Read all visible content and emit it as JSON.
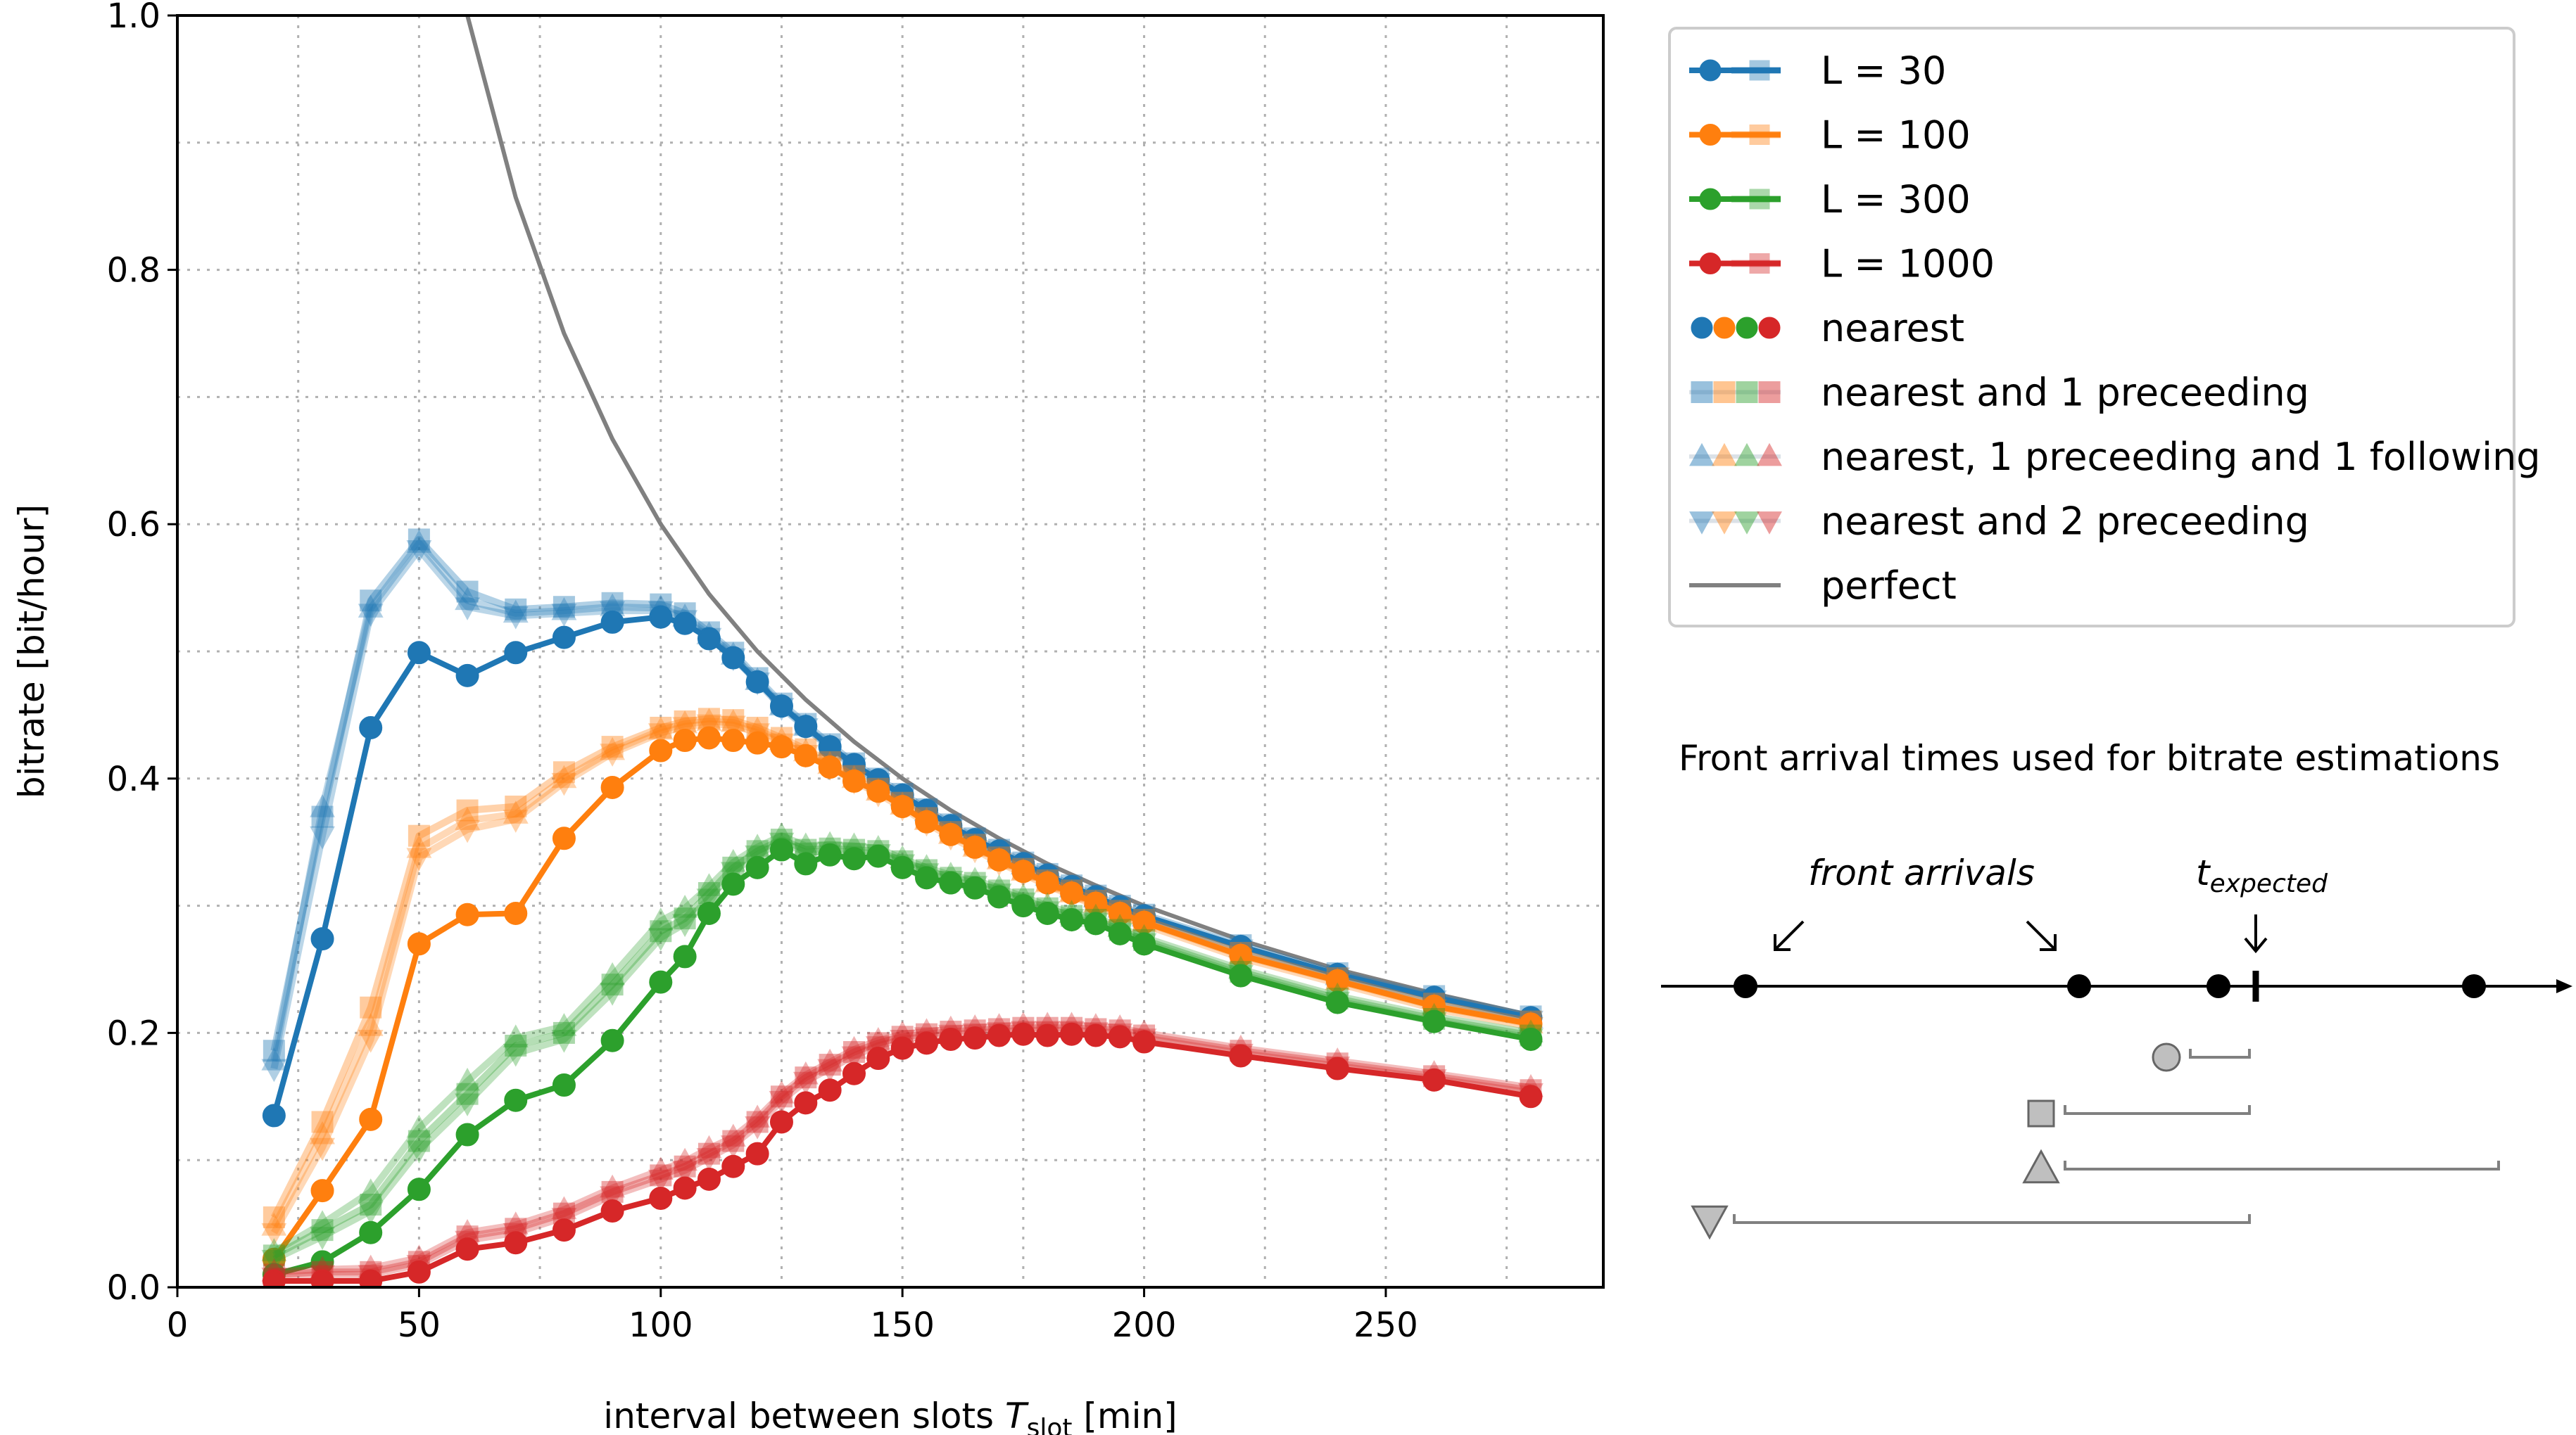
{
  "chart_data": {
    "type": "line",
    "xlabel": "interval between slots",
    "xlabel_symbol": "T",
    "xlabel_sub": "slot",
    "xlabel_unit": "[min]",
    "ylabel": "bitrate [bit/hour]",
    "xlim": [
      0,
      295
    ],
    "ylim": [
      0.0,
      1.0
    ],
    "xticks": [
      0,
      50,
      100,
      150,
      200,
      250
    ],
    "yticks": [
      0.0,
      0.2,
      0.4,
      0.6,
      0.8,
      1.0
    ],
    "xtick_labels": [
      "0",
      "50",
      "100",
      "150",
      "200",
      "250"
    ],
    "ytick_labels": [
      "0.0",
      "0.2",
      "0.4",
      "0.6",
      "0.8",
      "1.0"
    ],
    "grid": true,
    "legend_position": "outside-right-top",
    "x": [
      20,
      30,
      40,
      50,
      60,
      70,
      80,
      90,
      100,
      105,
      110,
      115,
      120,
      125,
      130,
      135,
      140,
      145,
      150,
      155,
      160,
      165,
      170,
      175,
      180,
      185,
      190,
      195,
      200,
      220,
      240,
      260,
      280
    ],
    "perfect": {
      "name": "perfect",
      "color": "#808080",
      "x": [
        60,
        70,
        80,
        90,
        100,
        110,
        120,
        130,
        140,
        150,
        160,
        170,
        180,
        190,
        200,
        220,
        240,
        260,
        280
      ],
      "values": [
        1.0,
        0.857,
        0.75,
        0.667,
        0.6,
        0.545,
        0.5,
        0.462,
        0.429,
        0.4,
        0.375,
        0.353,
        0.333,
        0.316,
        0.3,
        0.273,
        0.25,
        0.231,
        0.214
      ]
    },
    "series": [
      {
        "name": "L = 30",
        "color": "#1f77b4",
        "nearest": [
          0.135,
          0.274,
          0.44,
          0.499,
          0.481,
          0.499,
          0.511,
          0.523,
          0.527,
          0.522,
          0.51,
          0.495,
          0.476,
          0.457,
          0.441,
          0.425,
          0.411,
          0.399,
          0.387,
          0.375,
          0.363,
          0.352,
          0.343,
          0.333,
          0.324,
          0.315,
          0.307,
          0.299,
          0.292,
          0.268,
          0.246,
          0.228,
          0.212
        ],
        "nearest_1_preceding": [
          0.186,
          0.37,
          0.54,
          0.588,
          0.547,
          0.533,
          0.535,
          0.538,
          0.537,
          0.53,
          0.515,
          0.499,
          0.479,
          0.459,
          0.443,
          0.427,
          0.412,
          0.4,
          0.388,
          0.376,
          0.364,
          0.353,
          0.344,
          0.334,
          0.325,
          0.316,
          0.308,
          0.3,
          0.293,
          0.269,
          0.247,
          0.229,
          0.213
        ],
        "nearest_1_preceding_1_following": [
          0.178,
          0.377,
          0.534,
          0.585,
          0.54,
          0.53,
          0.532,
          0.535,
          0.534,
          0.527,
          0.513,
          0.497,
          0.477,
          0.457,
          0.441,
          0.425,
          0.41,
          0.398,
          0.386,
          0.374,
          0.362,
          0.351,
          0.342,
          0.332,
          0.323,
          0.314,
          0.306,
          0.298,
          0.291,
          0.267,
          0.245,
          0.227,
          0.211
        ],
        "nearest_2_preceding": [
          0.172,
          0.355,
          0.53,
          0.58,
          0.535,
          0.528,
          0.53,
          0.532,
          0.532,
          0.525,
          0.511,
          0.495,
          0.476,
          0.456,
          0.44,
          0.424,
          0.409,
          0.397,
          0.385,
          0.373,
          0.361,
          0.35,
          0.341,
          0.331,
          0.322,
          0.313,
          0.305,
          0.297,
          0.29,
          0.266,
          0.244,
          0.226,
          0.21
        ]
      },
      {
        "name": "L = 100",
        "color": "#ff7f0e",
        "nearest": [
          0.022,
          0.076,
          0.132,
          0.27,
          0.293,
          0.294,
          0.353,
          0.393,
          0.422,
          0.43,
          0.432,
          0.43,
          0.428,
          0.425,
          0.418,
          0.409,
          0.398,
          0.39,
          0.378,
          0.366,
          0.356,
          0.346,
          0.336,
          0.327,
          0.318,
          0.31,
          0.302,
          0.294,
          0.287,
          0.261,
          0.241,
          0.221,
          0.207
        ],
        "nearest_1_preceding": [
          0.055,
          0.13,
          0.22,
          0.355,
          0.375,
          0.378,
          0.405,
          0.425,
          0.44,
          0.445,
          0.447,
          0.446,
          0.44,
          0.432,
          0.423,
          0.413,
          0.402,
          0.392,
          0.381,
          0.369,
          0.358,
          0.348,
          0.338,
          0.329,
          0.32,
          0.312,
          0.304,
          0.296,
          0.289,
          0.263,
          0.243,
          0.223,
          0.209
        ],
        "nearest_1_preceding_1_following": [
          0.048,
          0.12,
          0.205,
          0.345,
          0.367,
          0.372,
          0.4,
          0.422,
          0.438,
          0.443,
          0.445,
          0.444,
          0.438,
          0.43,
          0.421,
          0.411,
          0.4,
          0.39,
          0.379,
          0.367,
          0.356,
          0.346,
          0.336,
          0.327,
          0.318,
          0.31,
          0.302,
          0.294,
          0.287,
          0.261,
          0.241,
          0.221,
          0.207
        ],
        "nearest_2_preceding": [
          0.043,
          0.11,
          0.195,
          0.338,
          0.36,
          0.368,
          0.397,
          0.42,
          0.436,
          0.441,
          0.443,
          0.442,
          0.436,
          0.428,
          0.419,
          0.409,
          0.398,
          0.388,
          0.377,
          0.365,
          0.354,
          0.344,
          0.334,
          0.325,
          0.316,
          0.308,
          0.3,
          0.292,
          0.285,
          0.259,
          0.239,
          0.219,
          0.205
        ]
      },
      {
        "name": "L = 300",
        "color": "#2ca02c",
        "nearest": [
          0.01,
          0.02,
          0.043,
          0.077,
          0.12,
          0.147,
          0.159,
          0.194,
          0.24,
          0.26,
          0.294,
          0.317,
          0.33,
          0.344,
          0.333,
          0.34,
          0.337,
          0.339,
          0.33,
          0.322,
          0.318,
          0.314,
          0.307,
          0.3,
          0.294,
          0.289,
          0.286,
          0.278,
          0.27,
          0.245,
          0.224,
          0.209,
          0.195
        ],
        "nearest_1_preceding": [
          0.025,
          0.045,
          0.065,
          0.115,
          0.152,
          0.19,
          0.2,
          0.238,
          0.28,
          0.29,
          0.31,
          0.33,
          0.343,
          0.352,
          0.344,
          0.345,
          0.344,
          0.343,
          0.335,
          0.328,
          0.322,
          0.318,
          0.312,
          0.305,
          0.298,
          0.292,
          0.289,
          0.281,
          0.273,
          0.248,
          0.227,
          0.211,
          0.198
        ],
        "nearest_1_preceding_1_following": [
          0.028,
          0.05,
          0.075,
          0.125,
          0.162,
          0.196,
          0.205,
          0.245,
          0.288,
          0.298,
          0.315,
          0.334,
          0.346,
          0.355,
          0.347,
          0.348,
          0.347,
          0.345,
          0.337,
          0.33,
          0.324,
          0.32,
          0.314,
          0.307,
          0.3,
          0.294,
          0.291,
          0.283,
          0.275,
          0.25,
          0.229,
          0.213,
          0.2
        ],
        "nearest_2_preceding": [
          0.022,
          0.04,
          0.06,
          0.108,
          0.145,
          0.184,
          0.195,
          0.232,
          0.275,
          0.286,
          0.306,
          0.327,
          0.34,
          0.35,
          0.342,
          0.343,
          0.342,
          0.341,
          0.333,
          0.326,
          0.32,
          0.316,
          0.31,
          0.303,
          0.296,
          0.29,
          0.287,
          0.279,
          0.271,
          0.246,
          0.225,
          0.209,
          0.196
        ]
      },
      {
        "name": "L = 1000",
        "color": "#d62728",
        "nearest": [
          0.005,
          0.005,
          0.005,
          0.012,
          0.03,
          0.035,
          0.045,
          0.06,
          0.07,
          0.078,
          0.085,
          0.095,
          0.105,
          0.13,
          0.145,
          0.155,
          0.168,
          0.18,
          0.188,
          0.192,
          0.195,
          0.196,
          0.198,
          0.199,
          0.198,
          0.199,
          0.198,
          0.197,
          0.193,
          0.182,
          0.172,
          0.163,
          0.15
        ],
        "nearest_1_preceding": [
          0.01,
          0.012,
          0.012,
          0.02,
          0.04,
          0.046,
          0.058,
          0.075,
          0.088,
          0.095,
          0.105,
          0.115,
          0.13,
          0.15,
          0.165,
          0.175,
          0.185,
          0.192,
          0.197,
          0.199,
          0.201,
          0.202,
          0.203,
          0.204,
          0.204,
          0.204,
          0.203,
          0.202,
          0.198,
          0.186,
          0.176,
          0.166,
          0.155
        ],
        "nearest_1_preceding_1_following": [
          0.012,
          0.014,
          0.015,
          0.023,
          0.043,
          0.049,
          0.061,
          0.078,
          0.092,
          0.099,
          0.109,
          0.118,
          0.133,
          0.152,
          0.167,
          0.177,
          0.187,
          0.194,
          0.199,
          0.201,
          0.203,
          0.204,
          0.205,
          0.206,
          0.206,
          0.206,
          0.205,
          0.204,
          0.2,
          0.188,
          0.178,
          0.168,
          0.157
        ],
        "nearest_2_preceding": [
          0.008,
          0.01,
          0.01,
          0.018,
          0.037,
          0.043,
          0.055,
          0.072,
          0.085,
          0.092,
          0.102,
          0.112,
          0.127,
          0.147,
          0.162,
          0.172,
          0.182,
          0.19,
          0.195,
          0.197,
          0.199,
          0.2,
          0.201,
          0.202,
          0.202,
          0.202,
          0.201,
          0.2,
          0.196,
          0.184,
          0.174,
          0.164,
          0.153
        ]
      }
    ],
    "legend": [
      {
        "label": "L = 30",
        "kind": "series",
        "color": "#1f77b4"
      },
      {
        "label": "L = 100",
        "kind": "series",
        "color": "#ff7f0e"
      },
      {
        "label": "L = 300",
        "kind": "series",
        "color": "#2ca02c"
      },
      {
        "label": "L = 1000",
        "kind": "series",
        "color": "#d62728"
      },
      {
        "label": "nearest",
        "kind": "marker",
        "marker": "circle"
      },
      {
        "label": "nearest and 1 preceeding",
        "kind": "marker",
        "marker": "square"
      },
      {
        "label": "nearest, 1 preceeding and 1 following",
        "kind": "marker",
        "marker": "triangle-up"
      },
      {
        "label": "nearest and 2 preceeding",
        "kind": "marker",
        "marker": "triangle-down"
      },
      {
        "label": "perfect",
        "kind": "line",
        "color": "#808080"
      }
    ]
  },
  "diagram": {
    "title": "Front arrival times used for bitrate estimations",
    "front_arrivals_label": "front arrivals",
    "t_expected_symbol": "t",
    "t_expected_sub": "expected",
    "marker_color": "#bfbfbf",
    "line_color": "#808080"
  }
}
